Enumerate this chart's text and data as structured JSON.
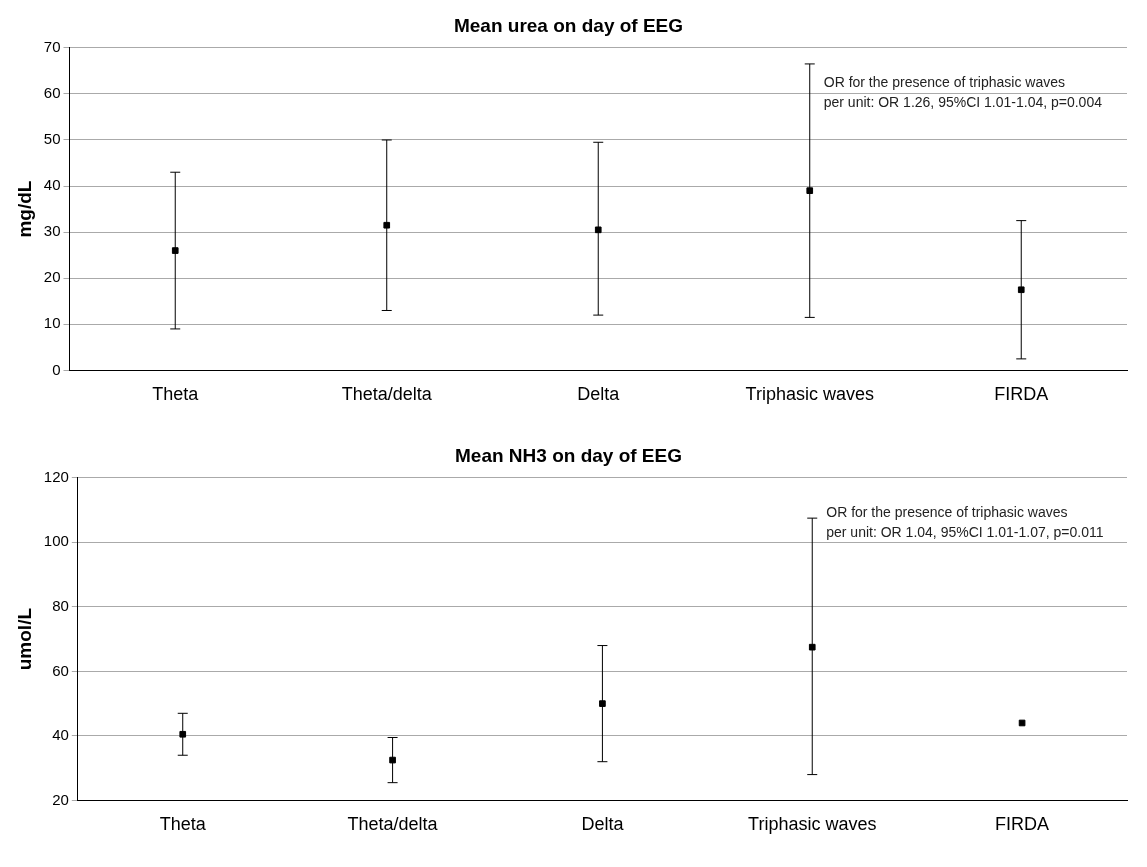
{
  "chart_data": [
    {
      "type": "scatter",
      "title": "Mean urea on day of EEG",
      "ylabel": "mg/dL",
      "categories": [
        "Theta",
        "Theta/delta",
        "Delta",
        "Triphasic waves",
        "FIRDA"
      ],
      "color": "#000000",
      "values": [
        26,
        31.5,
        30.5,
        39,
        17.5
      ],
      "errors": [
        [
          9,
          43
        ],
        [
          13,
          50
        ],
        [
          12,
          49.5
        ],
        [
          11.5,
          66.5
        ],
        [
          2.5,
          32.5
        ]
      ],
      "ylim": [
        0,
        70
      ],
      "yticks": [
        0,
        10,
        20,
        30,
        40,
        50,
        60,
        70
      ],
      "grid": "y",
      "legend": false,
      "annotations": [
        "OR for the presence of triphasic waves\nper unit: OR 1.26, 95%CI 1.01-1.04, p=0.004"
      ]
    },
    {
      "type": "scatter",
      "title": "Mean NH3 on day of EEG",
      "ylabel": "umol/L",
      "categories": [
        "Theta",
        "Theta/delta",
        "Delta",
        "Triphasic waves",
        "FIRDA"
      ],
      "color": "#000000",
      "values": [
        40.5,
        32.5,
        50,
        67.5,
        44
      ],
      "errors": [
        [
          34,
          47
        ],
        [
          25.5,
          39.5
        ],
        [
          32,
          68
        ],
        [
          28,
          107.5
        ],
        null
      ],
      "ylim": [
        20,
        120
      ],
      "yticks": [
        20,
        40,
        60,
        80,
        100,
        120
      ],
      "grid": "y",
      "legend": false,
      "annotations": [
        "OR for the presence of triphasic waves\nper unit: OR 1.04, 95%CI 1.01-1.07, p=0.011"
      ]
    }
  ]
}
